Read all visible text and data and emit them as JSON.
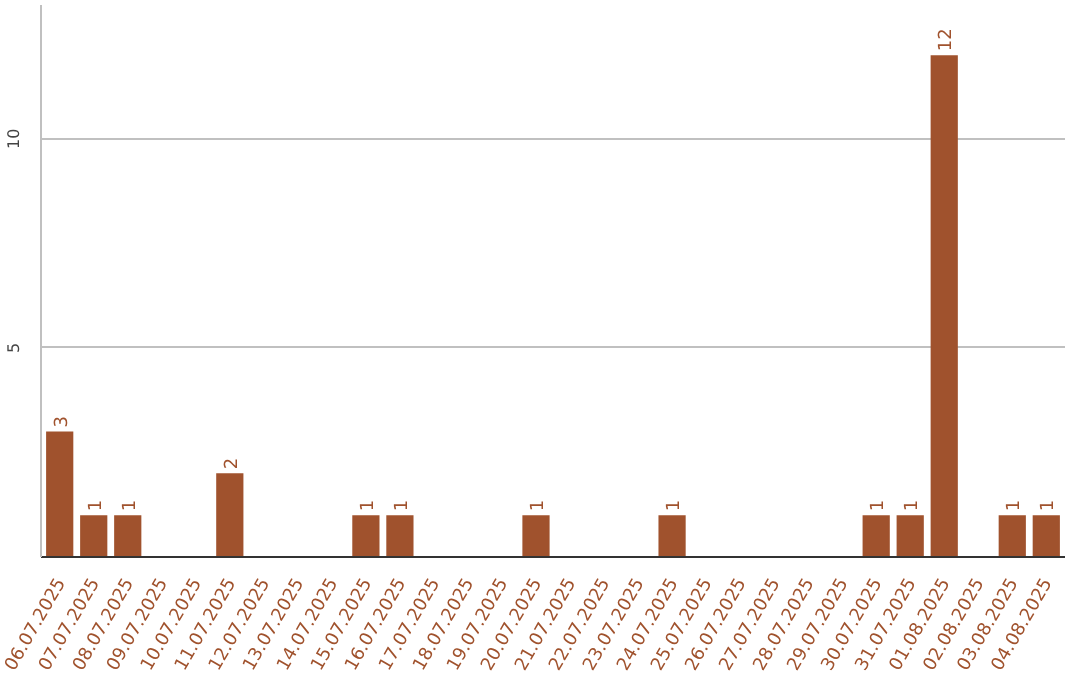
{
  "chart_data": {
    "type": "bar",
    "categories": [
      "06.07.2025",
      "07.07.2025",
      "08.07.2025",
      "09.07.2025",
      "10.07.2025",
      "11.07.2025",
      "12.07.2025",
      "13.07.2025",
      "14.07.2025",
      "15.07.2025",
      "16.07.2025",
      "17.07.2025",
      "18.07.2025",
      "19.07.2025",
      "20.07.2025",
      "21.07.2025",
      "22.07.2025",
      "23.07.2025",
      "24.07.2025",
      "25.07.2025",
      "26.07.2025",
      "27.07.2025",
      "28.07.2025",
      "29.07.2025",
      "30.07.2025",
      "31.07.2025",
      "01.08.2025",
      "02.08.2025",
      "03.08.2025",
      "04.08.2025"
    ],
    "values": [
      3,
      1,
      1,
      0,
      0,
      2,
      0,
      0,
      0,
      1,
      1,
      0,
      0,
      0,
      1,
      0,
      0,
      0,
      1,
      0,
      0,
      0,
      0,
      0,
      1,
      1,
      12,
      0,
      1,
      1
    ],
    "value_labels": [
      "3",
      "1",
      "1",
      null,
      null,
      "2",
      null,
      null,
      null,
      "1",
      "1",
      null,
      null,
      null,
      "1",
      null,
      null,
      null,
      "1",
      null,
      null,
      null,
      null,
      null,
      "1",
      "1",
      "12",
      null,
      "1",
      "1"
    ],
    "color": "#a0522d",
    "ylim": [
      0,
      13.2
    ],
    "yticks": [
      5,
      10
    ],
    "grid": "y"
  }
}
